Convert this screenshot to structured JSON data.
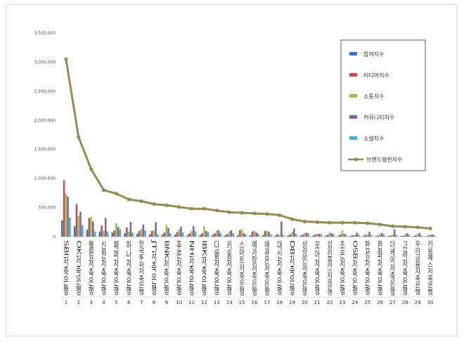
{
  "chart_data": {
    "type": "bar",
    "title": "",
    "xlabel": "",
    "ylabel": "",
    "ylim": [
      0,
      3500000
    ],
    "yticks": [
      "0",
      "500,000",
      "1,000,000",
      "1,500,000",
      "2,000,000",
      "2,500,000",
      "3,000,000",
      "3,500,000"
    ],
    "ytick_values": [
      0,
      500000,
      1000000,
      1500000,
      2000000,
      2500000,
      3000000,
      3500000
    ],
    "grid": false,
    "legend_position": "top-right",
    "categories": [
      "SBI저축은행",
      "OK저축은행",
      "웰컴저축은행",
      "신한저축은행",
      "페퍼저축은행",
      "하나저축은행",
      "한국투자저축은행",
      "JT저축은행",
      "BNK저축은행",
      "푸른저축은행",
      "NH저축은행",
      "IBK저축은행",
      "다올저축은행",
      "키움저축은행",
      "스마트저축은행",
      "예가람저축은행",
      "애큐온저축은행",
      "대신저축은행",
      "DB저축은행",
      "상상인저축은행",
      "모아저축은행",
      "상상인플러스저축은행",
      "조은저축은행",
      "OSB저축은행",
      "한성저축은행",
      "한화저축은행",
      "더케이저축은행",
      "고려저축은행",
      "우리금융저축은행",
      "키움예스저축은행"
    ],
    "index_labels": [
      "1",
      "2",
      "3",
      "4",
      "5",
      "6",
      "7",
      "8",
      "9",
      "10",
      "11",
      "12",
      "13",
      "14",
      "15",
      "16",
      "17",
      "18",
      "19",
      "20",
      "21",
      "22",
      "23",
      "24",
      "25",
      "26",
      "27",
      "28",
      "29",
      "30"
    ],
    "series": [
      {
        "name": "참여지수",
        "kind": "bar",
        "color": "#4472c4",
        "values": [
          280000,
          180000,
          120000,
          90000,
          70000,
          60000,
          55000,
          45000,
          40000,
          35000,
          30000,
          30000,
          30000,
          25000,
          25000,
          25000,
          25000,
          20000,
          20000,
          18000,
          18000,
          16000,
          15000,
          15000,
          14000,
          13000,
          12000,
          11000,
          10000,
          9000
        ]
      },
      {
        "name": "미디어지수",
        "kind": "bar",
        "color": "#c0504d",
        "values": [
          970000,
          560000,
          320000,
          190000,
          110000,
          160000,
          100000,
          100000,
          70000,
          80000,
          60000,
          60000,
          60000,
          45000,
          110000,
          90000,
          95000,
          40000,
          40000,
          35000,
          40000,
          35000,
          40000,
          25000,
          35000,
          20000,
          20000,
          15000,
          25000,
          20000
        ]
      },
      {
        "name": "소통지수",
        "kind": "bar",
        "color": "#9bbb59",
        "values": [
          740000,
          360000,
          340000,
          100000,
          230000,
          90000,
          130000,
          110000,
          200000,
          120000,
          100000,
          180000,
          110000,
          90000,
          130000,
          100000,
          110000,
          30000,
          80000,
          60000,
          50000,
          70000,
          110000,
          30000,
          40000,
          45000,
          35000,
          40000,
          45000,
          35000
        ]
      },
      {
        "name": "커뮤니티지수",
        "kind": "bar",
        "color": "#8064a2",
        "values": [
          690000,
          430000,
          260000,
          320000,
          170000,
          250000,
          210000,
          250000,
          150000,
          170000,
          180000,
          100000,
          110000,
          110000,
          60000,
          70000,
          80000,
          260000,
          140000,
          70000,
          50000,
          60000,
          50000,
          70000,
          80000,
          60000,
          130000,
          60000,
          60000,
          40000
        ]
      },
      {
        "name": "소셜지수",
        "kind": "bar",
        "color": "#4bacc6",
        "values": [
          330000,
          200000,
          90000,
          90000,
          130000,
          70000,
          110000,
          40000,
          60000,
          70000,
          90000,
          80000,
          60000,
          60000,
          40000,
          50000,
          40000,
          30000,
          50000,
          50000,
          45000,
          40000,
          30000,
          40000,
          30000,
          40000,
          30000,
          35000,
          20000,
          25000
        ]
      },
      {
        "name": "브랜드평판지수",
        "kind": "line",
        "color": "#948a54",
        "values": [
          3050000,
          1710000,
          1160000,
          800000,
          740000,
          640000,
          610000,
          560000,
          540000,
          510000,
          480000,
          480000,
          450000,
          420000,
          410000,
          400000,
          390000,
          370000,
          300000,
          260000,
          250000,
          240000,
          240000,
          240000,
          230000,
          210000,
          180000,
          170000,
          160000,
          140000
        ]
      }
    ]
  }
}
